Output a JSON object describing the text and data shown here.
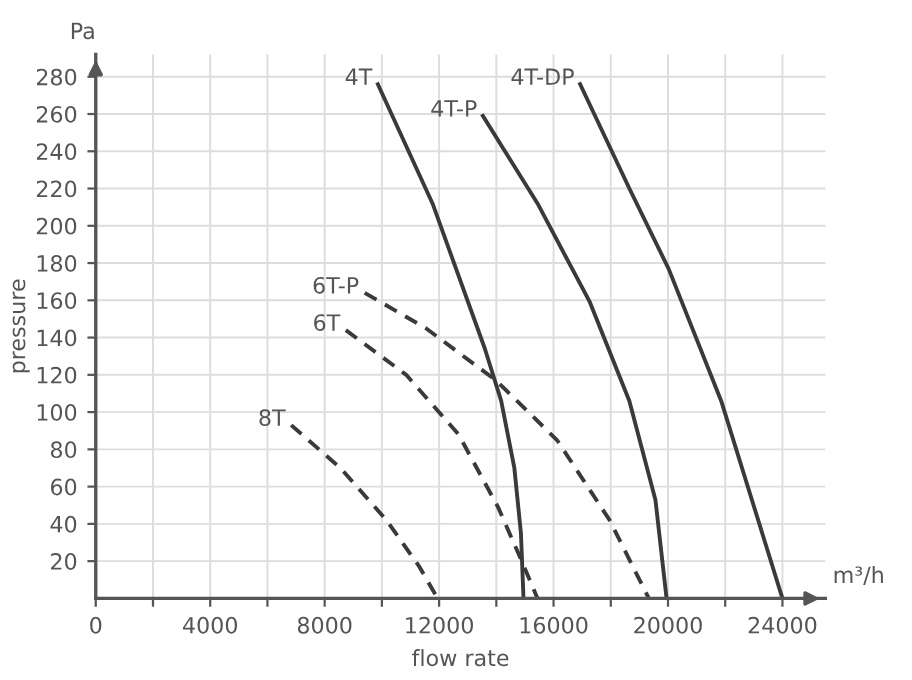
{
  "chart_data": {
    "type": "line",
    "xlabel": "flow rate",
    "ylabel": "pressure",
    "annotations": [
      "Pa",
      "m³/h"
    ],
    "xlim": [
      0,
      25500
    ],
    "ylim": [
      0,
      292
    ],
    "xticks": [
      0,
      {
        "value": 2000,
        "label": null
      },
      4000,
      {
        "value": 6000,
        "label": null
      },
      8000,
      {
        "value": 10000,
        "label": null
      },
      12000,
      {
        "value": 14000,
        "label": null
      },
      16000,
      {
        "value": 18000,
        "label": null
      },
      20000,
      {
        "value": 22000,
        "label": null
      },
      24000
    ],
    "yticks": [
      20,
      40,
      60,
      80,
      100,
      120,
      140,
      160,
      180,
      200,
      220,
      240,
      260,
      280
    ],
    "grid": true,
    "legend": false,
    "marker": "none",
    "series": [
      {
        "name": "4T",
        "color": "#3a3a3a",
        "line_style": "solid",
        "x": [
          9860,
          11770,
          13600,
          14170,
          14630,
          14860,
          14950
        ],
        "values": [
          276,
          212,
          134,
          106,
          70,
          35,
          0
        ]
      },
      {
        "name": "4T-P",
        "color": "#3a3a3a",
        "line_style": "solid",
        "x": [
          13530,
          15440,
          17270,
          18650,
          19560,
          19950
        ],
        "values": [
          259,
          212,
          159,
          106,
          53,
          0
        ]
      },
      {
        "name": "4T-DP",
        "color": "#3a3a3a",
        "line_style": "solid",
        "x": [
          16930,
          18650,
          20020,
          21860,
          24000
        ],
        "values": [
          276,
          220,
          177,
          106,
          0
        ]
      },
      {
        "name": "6T-P",
        "color": "#3a3a3a",
        "line_style": "dashed",
        "x": [
          9400,
          11540,
          13990,
          16120,
          17960,
          19330
        ],
        "values": [
          164,
          145,
          117,
          85,
          42,
          0
        ]
      },
      {
        "name": "6T",
        "color": "#3a3a3a",
        "line_style": "dashed",
        "x": [
          8740,
          10850,
          12680,
          14060,
          14860,
          15440
        ],
        "values": [
          144,
          120,
          88,
          49,
          21,
          0
        ]
      },
      {
        "name": "8T",
        "color": "#3a3a3a",
        "line_style": "dashed",
        "x": [
          6830,
          8550,
          10160,
          11310,
          11950
        ],
        "values": [
          93,
          70,
          42,
          17,
          0
        ]
      }
    ]
  }
}
